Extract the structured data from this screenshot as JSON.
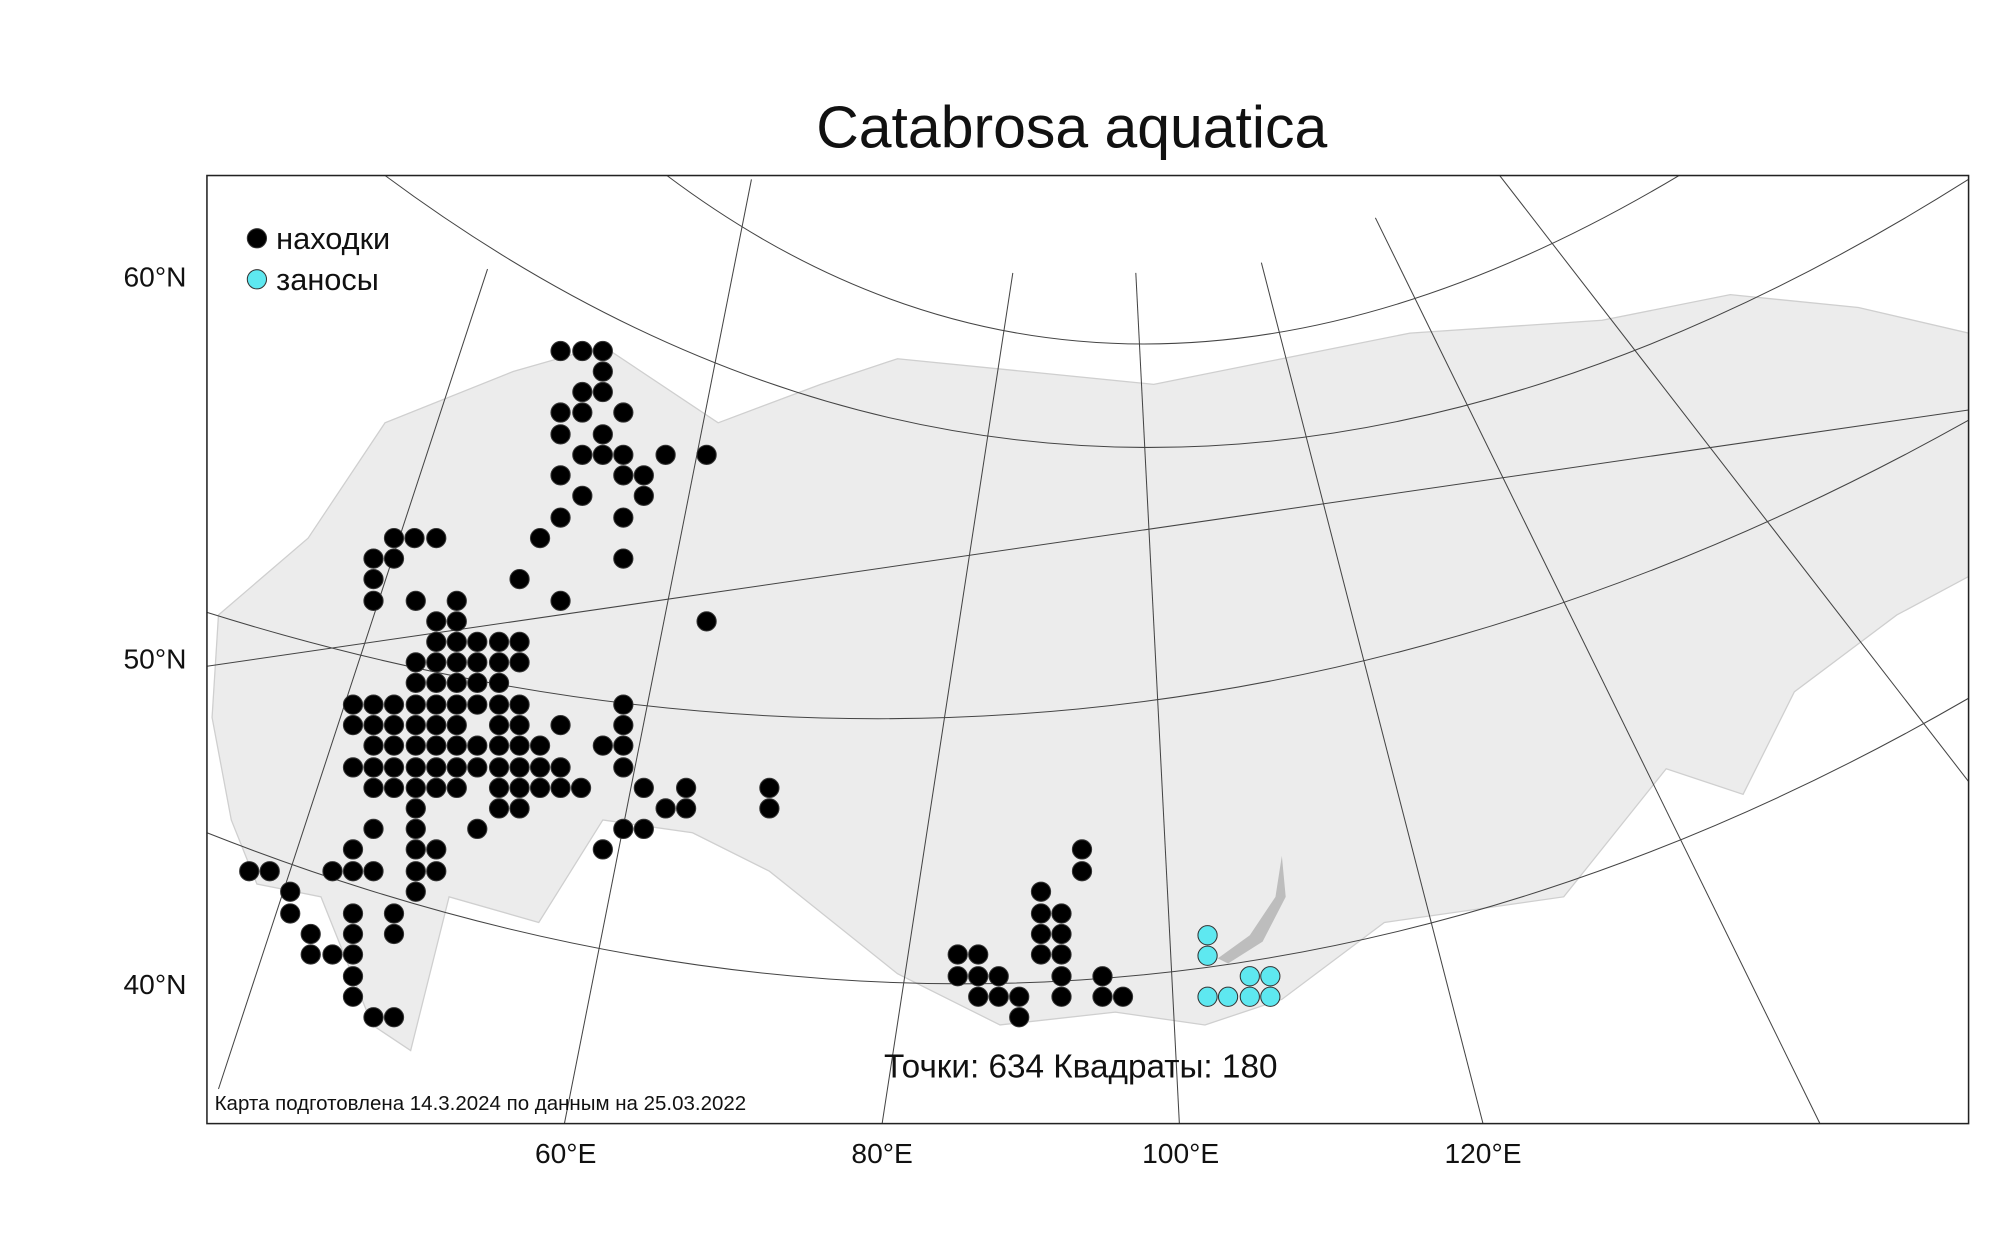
{
  "title": "Catabrosa aquatica",
  "legend": [
    {
      "label": "находки",
      "color": "#000000"
    },
    {
      "label": "заносы",
      "color": "#5ee8f0"
    }
  ],
  "lat_labels": [
    "60°N",
    "50°N",
    "40°N"
  ],
  "lon_labels": [
    "60°E",
    "80°E",
    "100°E",
    "120°E"
  ],
  "stats": "Точки: 634 Квадраты: 180",
  "note": "Карта подготовлена 14.3.2024 по данным на 25.03.2022"
}
